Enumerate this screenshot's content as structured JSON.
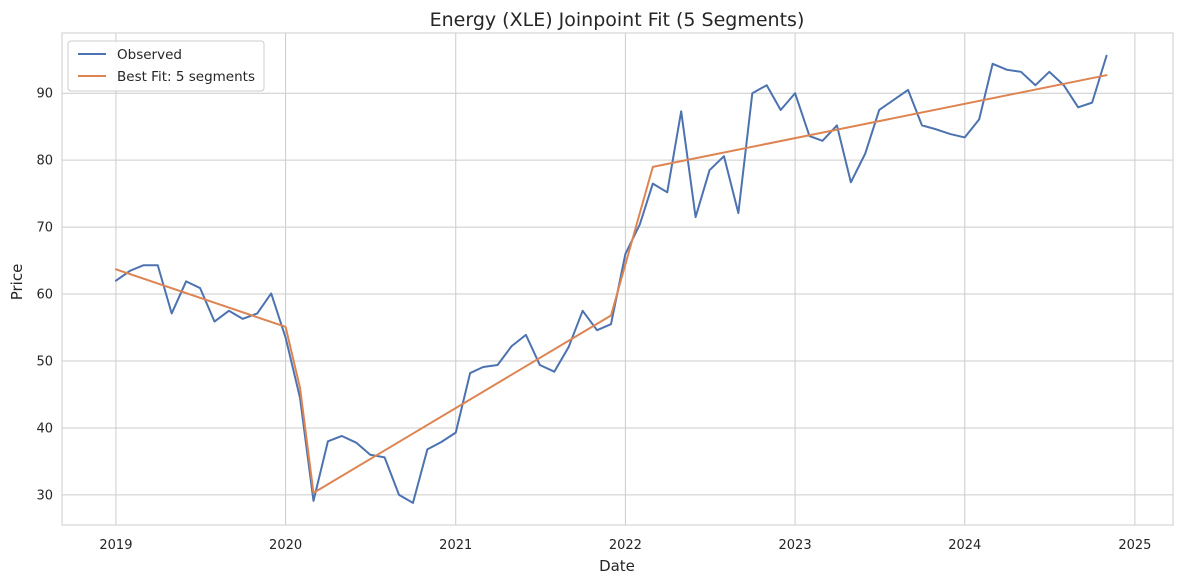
{
  "chart_data": {
    "type": "line",
    "title": "Energy (XLE) Joinpoint Fit (5 Segments)",
    "xlabel": "Date",
    "ylabel": "Price",
    "xlim": [
      "2018-09-07",
      "2025-03-24"
    ],
    "ylim": [
      25.5,
      99
    ],
    "x_ticks": [
      "2019",
      "2020",
      "2021",
      "2022",
      "2023",
      "2024",
      "2025"
    ],
    "y_ticks": [
      30,
      40,
      50,
      60,
      70,
      80,
      90
    ],
    "grid": true,
    "legend_position": "top-left",
    "colors": {
      "observed": "#4c72b0",
      "fit": "#dd8452",
      "grid": "#cccccc",
      "frame": "#cccccc"
    },
    "series": [
      {
        "name": "Observed",
        "color": "#4c72b0",
        "x": [
          "2019-01-01",
          "2019-02-01",
          "2019-03-01",
          "2019-04-01",
          "2019-05-01",
          "2019-06-01",
          "2019-07-01",
          "2019-08-01",
          "2019-09-01",
          "2019-10-01",
          "2019-11-01",
          "2019-12-01",
          "2020-01-01",
          "2020-02-01",
          "2020-03-01",
          "2020-04-01",
          "2020-05-01",
          "2020-06-01",
          "2020-07-01",
          "2020-08-01",
          "2020-09-01",
          "2020-10-01",
          "2020-11-01",
          "2020-12-01",
          "2021-01-01",
          "2021-02-01",
          "2021-03-01",
          "2021-04-01",
          "2021-05-01",
          "2021-06-01",
          "2021-07-01",
          "2021-08-01",
          "2021-09-01",
          "2021-10-01",
          "2021-11-01",
          "2021-12-01",
          "2022-01-01",
          "2022-02-01",
          "2022-03-01",
          "2022-04-01",
          "2022-05-01",
          "2022-06-01",
          "2022-07-01",
          "2022-08-01",
          "2022-09-01",
          "2022-10-01",
          "2022-11-01",
          "2022-12-01",
          "2023-01-01",
          "2023-02-01",
          "2023-03-01",
          "2023-04-01",
          "2023-05-01",
          "2023-06-01",
          "2023-07-01",
          "2023-08-01",
          "2023-09-01",
          "2023-10-01",
          "2023-11-01",
          "2023-12-01",
          "2024-01-01",
          "2024-02-01",
          "2024-03-01",
          "2024-04-01",
          "2024-05-01",
          "2024-06-01",
          "2024-07-01",
          "2024-08-01",
          "2024-09-01",
          "2024-10-01",
          "2024-11-01"
        ],
        "y": [
          62.0,
          63.5,
          64.3,
          64.3,
          57.1,
          61.9,
          60.9,
          55.9,
          57.5,
          56.3,
          57.1,
          60.1,
          53.5,
          44.5,
          29.1,
          38.0,
          38.8,
          37.8,
          36.0,
          35.6,
          30.0,
          28.8,
          36.8,
          37.9,
          39.3,
          48.2,
          49.1,
          49.4,
          52.2,
          53.9,
          49.4,
          48.4,
          52.1,
          57.5,
          54.6,
          55.5,
          66.0,
          70.4,
          76.5,
          75.2,
          87.3,
          71.5,
          78.5,
          80.6,
          72.1,
          90.0,
          91.2,
          87.5,
          90.0,
          83.6,
          82.9,
          85.2,
          76.7,
          81.0,
          87.5,
          89.0,
          90.5,
          85.2,
          84.6,
          83.9,
          83.4,
          86.1,
          94.4,
          93.5,
          93.2,
          91.2,
          93.2,
          91.2,
          87.9,
          88.6,
          95.6
        ]
      },
      {
        "name": "Best Fit: 5 segments",
        "color": "#dd8452",
        "x": [
          "2019-01-01",
          "2020-01-01",
          "2020-02-01",
          "2020-03-01",
          "2021-12-01",
          "2022-03-01",
          "2024-11-01"
        ],
        "y": [
          63.7,
          55.1,
          46.0,
          30.3,
          56.8,
          79.0,
          92.7
        ]
      }
    ]
  }
}
